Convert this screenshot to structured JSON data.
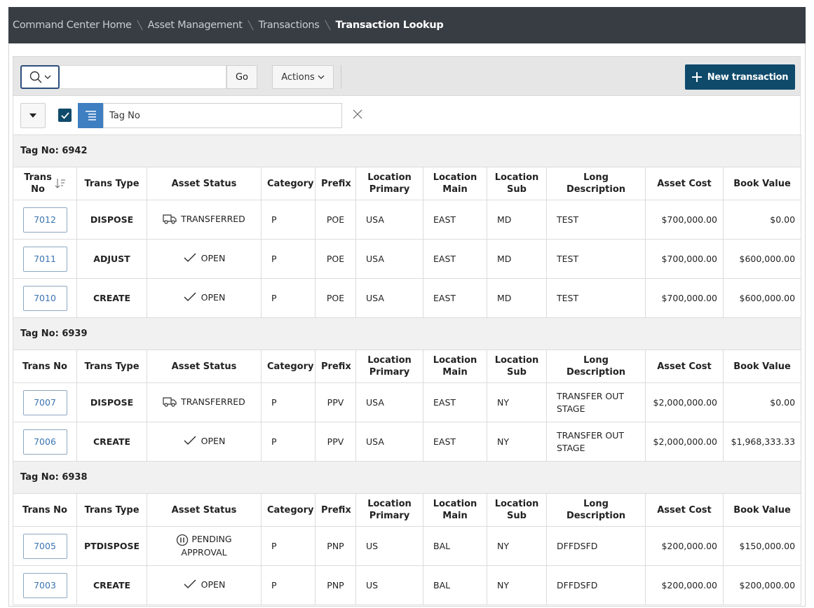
{
  "breadcrumb": [
    "Command Center Home",
    "Asset Management",
    "Transactions",
    "Transaction Lookup"
  ],
  "toolbar": {
    "go": "Go",
    "actions": "Actions",
    "new_button": "New transaction"
  },
  "filter": {
    "label": "Tag No"
  },
  "table": {
    "columns": [
      "Trans No",
      "Trans Type",
      "Asset Status",
      "Category",
      "Prefix",
      "Location Primary",
      "Location Main",
      "Location Sub",
      "Long Description",
      "Asset Cost",
      "Book Value"
    ],
    "groups": [
      {
        "label": "Tag No: 6942",
        "rows": [
          [
            "7012",
            "DISPOSE",
            "TRANSFERRED",
            "P",
            "POE",
            "USA",
            "EAST",
            "MD",
            "TEST",
            "$700,000.00",
            "$0.00"
          ],
          [
            "7011",
            "ADJUST",
            "OPEN",
            "P",
            "POE",
            "USA",
            "EAST",
            "MD",
            "TEST",
            "$700,000.00",
            "$600,000.00"
          ],
          [
            "7010",
            "CREATE",
            "OPEN",
            "P",
            "POE",
            "USA",
            "EAST",
            "MD",
            "TEST",
            "$700,000.00",
            "$600,000.00"
          ]
        ]
      },
      {
        "label": "Tag No: 6939",
        "rows": [
          [
            "7007",
            "DISPOSE",
            "TRANSFERRED",
            "P",
            "PPV",
            "USA",
            "EAST",
            "NY",
            "TRANSFER OUT STAGE",
            "$2,000,000.00",
            "$0.00"
          ],
          [
            "7006",
            "CREATE",
            "OPEN",
            "P",
            "PPV",
            "USA",
            "EAST",
            "NY",
            "TRANSFER OUT STAGE",
            "$2,000,000.00",
            "$1,968,333.33"
          ]
        ]
      },
      {
        "label": "Tag No: 6938",
        "rows": [
          [
            "7005",
            "PTDISPOSE",
            "PENDING APPROVAL",
            "P",
            "PNP",
            "US",
            "BAL",
            "NY",
            "DFFDSFD",
            "$200,000.00",
            "$150,000.00"
          ],
          [
            "7003",
            "CREATE",
            "OPEN",
            "P",
            "PNP",
            "US",
            "BAL",
            "NY",
            "DFFDSFD",
            "$200,000.00",
            "$200,000.00"
          ]
        ]
      }
    ]
  }
}
